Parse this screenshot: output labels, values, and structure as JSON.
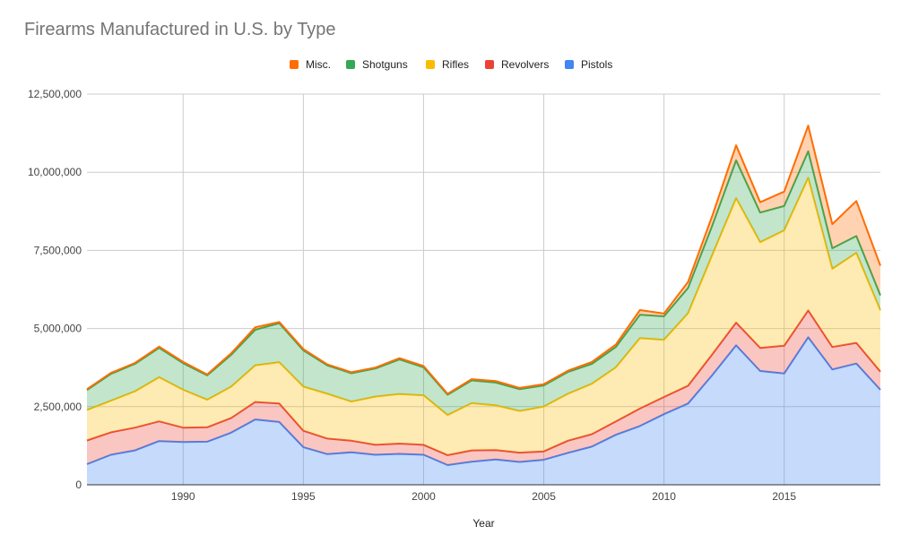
{
  "chart_data": {
    "type": "area",
    "stacked": true,
    "title": "Firearms Manufactured in U.S. by Type",
    "xlabel": "Year",
    "ylabel": "",
    "xlim": [
      1986,
      2019
    ],
    "ylim": [
      0,
      12500000
    ],
    "x_ticks": [
      1990,
      1995,
      2000,
      2005,
      2010,
      2015
    ],
    "y_ticks": [
      0,
      2500000,
      5000000,
      7500000,
      10000000,
      12500000
    ],
    "y_tick_labels": [
      "0",
      "2,500,000",
      "5,000,000",
      "7,500,000",
      "10,000,000",
      "12,500,000"
    ],
    "grid": true,
    "legend_position": "top",
    "x": [
      1986,
      1987,
      1988,
      1989,
      1990,
      1991,
      1992,
      1993,
      1994,
      1995,
      1996,
      1997,
      1998,
      1999,
      2000,
      2001,
      2002,
      2003,
      2004,
      2005,
      2006,
      2007,
      2008,
      2009,
      2010,
      2011,
      2012,
      2013,
      2014,
      2015,
      2016,
      2017,
      2018,
      2019
    ],
    "series": [
      {
        "name": "Pistols",
        "color": "#4285f4",
        "values": [
          660000,
          960000,
          1100000,
          1400000,
          1370000,
          1380000,
          1670000,
          2090000,
          2010000,
          1200000,
          980000,
          1040000,
          960000,
          990000,
          960000,
          630000,
          740000,
          810000,
          730000,
          800000,
          1020000,
          1220000,
          1600000,
          1880000,
          2260000,
          2600000,
          3500000,
          4460000,
          3640000,
          3560000,
          4720000,
          3690000,
          3880000,
          3040000
        ]
      },
      {
        "name": "Revolvers",
        "color": "#ea4335",
        "values": [
          760000,
          720000,
          730000,
          630000,
          460000,
          460000,
          470000,
          560000,
          590000,
          530000,
          500000,
          370000,
          320000,
          330000,
          320000,
          320000,
          360000,
          300000,
          300000,
          270000,
          390000,
          400000,
          430000,
          560000,
          550000,
          570000,
          670000,
          730000,
          740000,
          890000,
          860000,
          720000,
          660000,
          580000
        ]
      },
      {
        "name": "Rifles",
        "color": "#fbbc04",
        "values": [
          970000,
          1010000,
          1160000,
          1410000,
          1210000,
          880000,
          1000000,
          1170000,
          1320000,
          1410000,
          1430000,
          1250000,
          1540000,
          1580000,
          1580000,
          1280000,
          1510000,
          1430000,
          1330000,
          1430000,
          1500000,
          1610000,
          1730000,
          2250000,
          1830000,
          2320000,
          3170000,
          3980000,
          3380000,
          3690000,
          4240000,
          2500000,
          2880000,
          1960000
        ]
      },
      {
        "name": "Shotguns",
        "color": "#34a853",
        "values": [
          640000,
          860000,
          880000,
          940000,
          850000,
          780000,
          1020000,
          1140000,
          1250000,
          1160000,
          910000,
          910000,
          900000,
          1110000,
          900000,
          650000,
          730000,
          730000,
          700000,
          680000,
          700000,
          640000,
          650000,
          750000,
          750000,
          810000,
          940000,
          1210000,
          950000,
          780000,
          850000,
          660000,
          540000,
          480000
        ]
      },
      {
        "name": "Misc.",
        "color": "#ff6d01",
        "values": [
          30000,
          30000,
          30000,
          40000,
          40000,
          30000,
          50000,
          80000,
          40000,
          40000,
          30000,
          30000,
          30000,
          40000,
          40000,
          30000,
          40000,
          50000,
          40000,
          40000,
          40000,
          60000,
          80000,
          150000,
          90000,
          190000,
          310000,
          480000,
          330000,
          460000,
          820000,
          770000,
          1120000,
          950000
        ]
      }
    ]
  }
}
